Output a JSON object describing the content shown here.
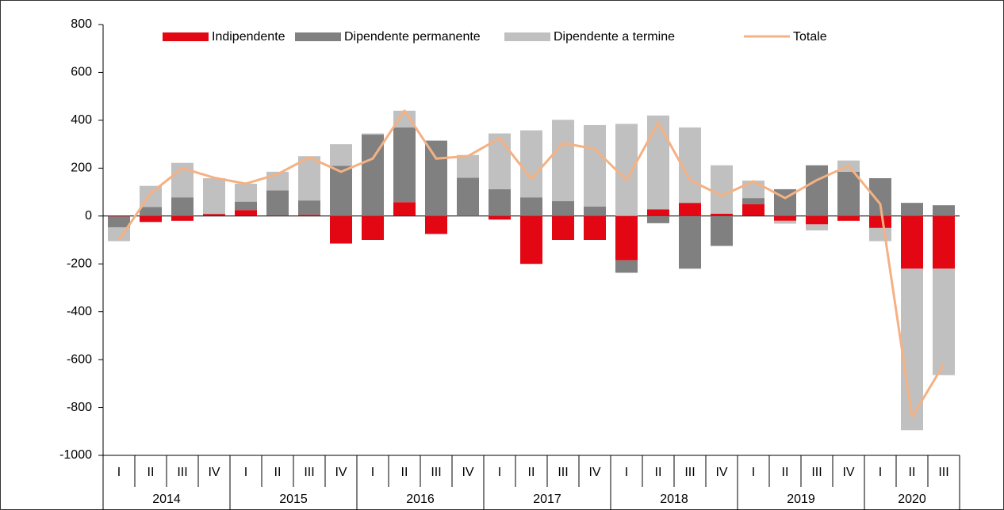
{
  "chart_data": {
    "type": "stacked_bar_line",
    "categories": [
      "I",
      "II",
      "III",
      "IV",
      "I",
      "II",
      "III",
      "IV",
      "I",
      "II",
      "III",
      "IV",
      "I",
      "II",
      "III",
      "IV",
      "I",
      "II",
      "III",
      "IV",
      "I",
      "II",
      "III",
      "IV",
      "I",
      "II",
      "III"
    ],
    "year_groups": [
      {
        "label": "2014",
        "quarters": 4
      },
      {
        "label": "2015",
        "quarters": 4
      },
      {
        "label": "2016",
        "quarters": 4
      },
      {
        "label": "2017",
        "quarters": 4
      },
      {
        "label": "2018",
        "quarters": 4
      },
      {
        "label": "2019",
        "quarters": 4
      },
      {
        "label": "2020",
        "quarters": 3
      }
    ],
    "series": [
      {
        "name": "Indipendente",
        "color": "#e30613",
        "kind": "bar",
        "values": [
          -2,
          -25,
          -20,
          8,
          25,
          2,
          5,
          -115,
          -100,
          58,
          -75,
          0,
          -15,
          -200,
          -100,
          -100,
          -185,
          28,
          55,
          10,
          50,
          -20,
          -35,
          -20,
          -50,
          -220,
          -220
        ]
      },
      {
        "name": "Dipendente permanente",
        "color": "#808080",
        "kind": "bar",
        "values": [
          -45,
          38,
          78,
          2,
          35,
          105,
          60,
          210,
          340,
          312,
          315,
          160,
          112,
          78,
          62,
          40,
          -52,
          -30,
          -220,
          -125,
          25,
          112,
          212,
          185,
          158,
          55,
          45
        ]
      },
      {
        "name": "Dipendente a termine",
        "color": "#c0c0c0",
        "kind": "bar",
        "values": [
          -58,
          88,
          144,
          148,
          75,
          78,
          185,
          90,
          5,
          70,
          0,
          95,
          233,
          280,
          340,
          340,
          385,
          392,
          315,
          202,
          73,
          -12,
          -25,
          47,
          -55,
          -675,
          -445
        ]
      },
      {
        "name": "Totale",
        "color": "#f4b183",
        "kind": "line",
        "values": [
          -100,
          95,
          200,
          160,
          135,
          175,
          245,
          185,
          240,
          440,
          240,
          250,
          325,
          155,
          305,
          280,
          150,
          390,
          150,
          85,
          145,
          75,
          150,
          210,
          50,
          -840,
          -620
        ]
      }
    ],
    "ylim": [
      -1000,
      800
    ],
    "yticks": [
      -1000,
      -800,
      -600,
      -400,
      -200,
      0,
      200,
      400,
      600,
      800
    ]
  }
}
